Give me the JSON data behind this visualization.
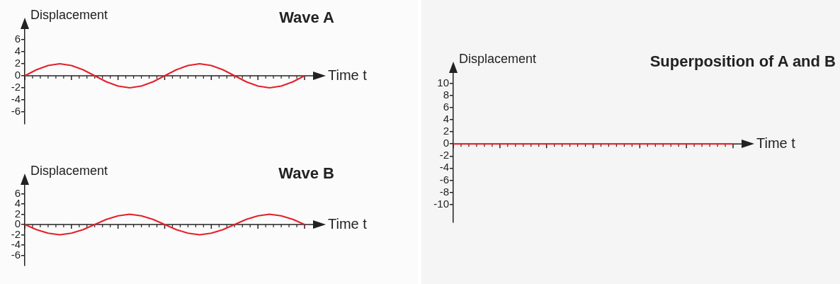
{
  "chart_data": [
    {
      "type": "line",
      "title": "Wave A",
      "xlabel": "Time t",
      "ylabel": "Displacement",
      "categories": [
        null,
        null,
        null,
        null,
        null,
        null,
        null,
        null,
        null,
        null,
        null,
        null,
        null,
        null,
        null,
        null,
        null,
        null,
        null,
        null,
        null,
        null,
        null,
        null,
        null
      ],
      "series": [
        {
          "color": "#e4202a",
          "values": [
            0,
            1,
            1.7,
            2,
            1.7,
            1,
            0,
            -1,
            -1.7,
            -2,
            -1.7,
            -1,
            0,
            1,
            1.7,
            2,
            1.7,
            1,
            0,
            -1,
            -1.7,
            -2,
            -1.7,
            -1,
            0
          ]
        }
      ],
      "ylim": [
        -8,
        8
      ],
      "yticks": [
        -6,
        -4,
        -2,
        0,
        2,
        4,
        6
      ],
      "tick_labels": "y",
      "marker": "none"
    },
    {
      "type": "line",
      "title": "Wave B",
      "xlabel": "Time t",
      "ylabel": "Displacement",
      "categories": [
        null,
        null,
        null,
        null,
        null,
        null,
        null,
        null,
        null,
        null,
        null,
        null,
        null,
        null,
        null,
        null,
        null,
        null,
        null,
        null,
        null,
        null,
        null,
        null,
        null
      ],
      "series": [
        {
          "color": "#e4202a",
          "values": [
            0,
            -1,
            -1.7,
            -2,
            -1.7,
            -1,
            0,
            1,
            1.7,
            2,
            1.7,
            1,
            0,
            -1,
            -1.7,
            -2,
            -1.7,
            -1,
            0,
            1,
            1.7,
            2,
            1.7,
            1,
            0
          ]
        }
      ],
      "ylim": [
        -8,
        8
      ],
      "yticks": [
        -6,
        -4,
        -2,
        0,
        2,
        4,
        6
      ],
      "tick_labels": "y",
      "marker": "none"
    },
    {
      "type": "line",
      "title": "Superposition of A and B",
      "xlabel": "Time t",
      "ylabel": "Displacement",
      "categories": [
        null,
        null,
        null,
        null,
        null,
        null,
        null,
        null,
        null,
        null,
        null,
        null,
        null,
        null,
        null,
        null,
        null,
        null,
        null,
        null,
        null,
        null,
        null,
        null,
        null
      ],
      "series": [
        {
          "color": "#e4202a",
          "values": [
            0,
            0,
            0,
            0,
            0,
            0,
            0,
            0,
            0,
            0,
            0,
            0,
            0,
            0,
            0,
            0,
            0,
            0,
            0,
            0,
            0,
            0,
            0,
            0,
            0
          ]
        }
      ],
      "ylim": [
        -13,
        12
      ],
      "yticks": [
        -10,
        -8,
        -6,
        -4,
        -2,
        0,
        2,
        4,
        6,
        8,
        10
      ],
      "tick_labels": "y",
      "marker": "none"
    }
  ]
}
